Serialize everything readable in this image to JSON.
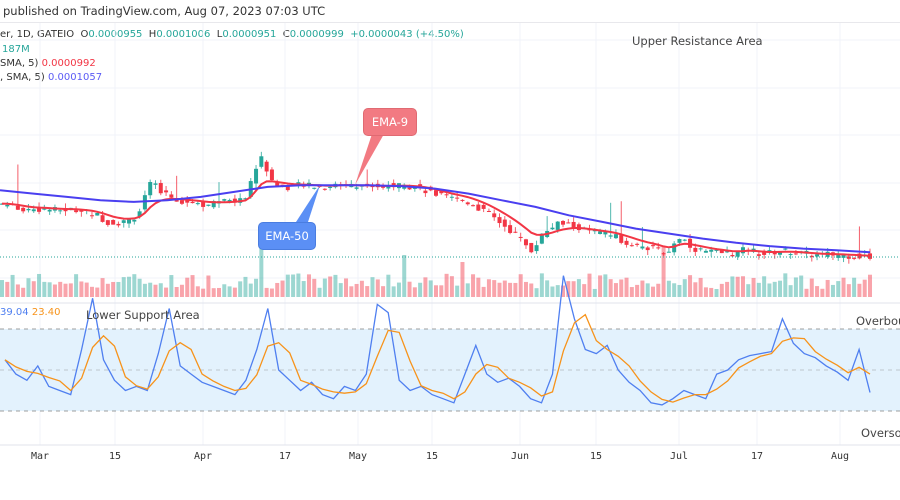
{
  "header": {
    "published": "published on TradingView.com, Aug 07, 2023 07:03 UTC"
  },
  "legend": {
    "symbol": "er, 1D, GATEIO",
    "open_label": "O",
    "open": "0.0000955",
    "high_label": "H",
    "high": "0.0001006",
    "low_label": "L",
    "low": "0.0000951",
    "close_label": "C",
    "close": "0.0000999",
    "change": "+0.0000043 (+4.50%)",
    "volume": "187M",
    "ema9_label": "SMA, 5)",
    "ema9_value": "0.0000992",
    "ema50_label": ", SMA, 5)",
    "ema50_value": "0.0001057",
    "rsi_value": "39.04",
    "rsi_ma_value": "23.40"
  },
  "annotations": {
    "upper": "Upper Resistance Area",
    "lower": "Lower Support Area",
    "overbought": "Overbought",
    "oversold": "Oversold",
    "ema9": "EMA-9",
    "ema50": "EMA-50"
  },
  "colors": {
    "up": "#26a69a",
    "down": "#f23645",
    "ema9": "#f23645",
    "ema50": "#4a3ff0",
    "rsi": "#4f7ff0",
    "rsi_ma": "#f7931a",
    "rsi_band": "#e3f2fd",
    "ema9_callout": "#f27a82",
    "ema50_callout": "#5b8ff5"
  },
  "chart_data": {
    "type": "candlestick",
    "x_ticks": [
      "Mar",
      "15",
      "Apr",
      "17",
      "May",
      "15",
      "Jun",
      "15",
      "Jul",
      "17",
      "Aug"
    ],
    "last_close": 9.99e-05,
    "closes": [
      0.000164,
      0.00016,
      0.000156,
      0.000158,
      0.000156,
      0.000157,
      0.000155,
      0.00015,
      0.00014,
      0.000142,
      0.00015,
      0.000189,
      0.000176,
      0.000168,
      0.000166,
      0.000163,
      0.000165,
      0.000167,
      0.000172,
      0.000222,
      0.000188,
      0.000184,
      0.000186,
      0.000185,
      0.000184,
      0.000188,
      0.000185,
      0.000186,
      0.000184,
      0.000186,
      0.000185,
      0.000182,
      0.000175,
      0.00017,
      0.000168,
      0.00016,
      0.00015,
      0.000138,
      0.000125,
      0.000108,
      0.00013,
      0.00014,
      0.000138,
      0.000132,
      0.000128,
      0.000126,
      0.000118,
      0.000112,
      0.00011,
      0.000104,
      0.000125,
      0.00011,
      0.000106,
      0.000105,
      0.000104,
      0.00011,
      0.000103,
      0.000106,
      0.000107,
      0.000104,
      0.000102,
      0.000103,
      0.000102,
      0.000101,
      9.99e-05
    ],
    "ema50": [
      0.00018,
      0.000176,
      0.000172,
      0.000168,
      0.000166,
      0.000168,
      0.000172,
      0.000178,
      0.000184,
      0.000186,
      0.000186,
      0.000186,
      0.000185,
      0.000182,
      0.000176,
      0.000168,
      0.00016,
      0.00015,
      0.000142,
      0.000134,
      0.000128,
      0.000122,
      0.000117,
      0.000113,
      0.00011,
      0.000108,
      0.0001057
    ],
    "rsi": [
      55,
      48,
      45,
      52,
      42,
      40,
      38,
      60,
      85,
      55,
      45,
      40,
      42,
      40,
      58,
      80,
      52,
      48,
      44,
      42,
      40,
      38,
      45,
      60,
      80,
      50,
      45,
      40,
      44,
      38,
      36,
      42,
      40,
      48,
      82,
      78,
      45,
      40,
      42,
      38,
      36,
      34,
      48,
      62,
      48,
      44,
      46,
      42,
      36,
      34,
      48,
      96,
      75,
      60,
      58,
      62,
      50,
      44,
      40,
      34,
      33,
      36,
      40,
      38,
      36,
      48,
      50,
      55,
      57,
      58,
      59,
      75,
      63,
      58,
      56,
      52,
      49,
      45,
      60,
      39.04
    ],
    "rsi_levels": [
      70,
      50,
      30
    ]
  }
}
